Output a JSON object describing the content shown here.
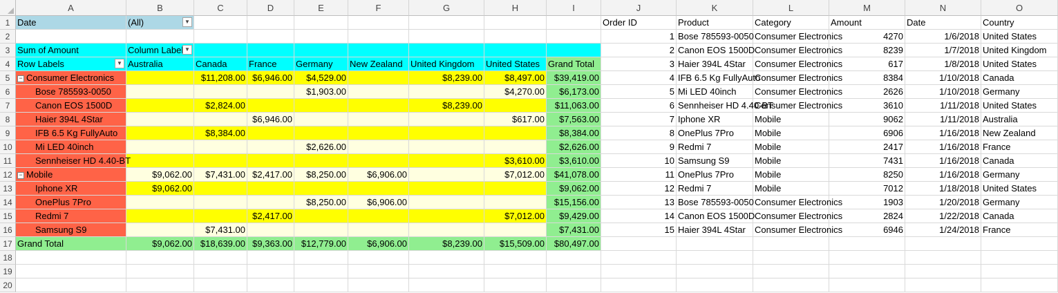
{
  "columns": [
    "A",
    "B",
    "C",
    "D",
    "E",
    "F",
    "G",
    "H",
    "I",
    "J",
    "K",
    "L",
    "M",
    "N",
    "O"
  ],
  "rows": [
    "1",
    "2",
    "3",
    "4",
    "5",
    "6",
    "7",
    "8",
    "9",
    "10",
    "11",
    "12",
    "13",
    "14",
    "15",
    "16",
    "17",
    "18",
    "19",
    "20"
  ],
  "colors": {
    "filter_bg": "#add8e6",
    "header_bg": "#00ffff",
    "row_label_bg": "#ff6347",
    "band_yellow": "#ffff00",
    "band_light": "#ffffe0",
    "total_green": "#90ee90"
  },
  "pivot": {
    "filter_label": "Date",
    "filter_value": "(All)",
    "values_label": "Sum of Amount",
    "column_labels": "Column Labels",
    "row_labels": "Row Labels",
    "grand_total_label": "Grand Total",
    "countries": [
      "Australia",
      "Canada",
      "France",
      "Germany",
      "New Zealand",
      "United Kingdom",
      "United States",
      "Grand Total"
    ],
    "rows": [
      {
        "label": "Consumer Electronics",
        "group": true,
        "values": [
          "",
          "$11,208.00",
          "$6,946.00",
          "$4,529.00",
          "",
          "$8,239.00",
          "$8,497.00",
          "$39,419.00"
        ]
      },
      {
        "label": "Bose 785593-0050",
        "group": false,
        "values": [
          "",
          "",
          "",
          "$1,903.00",
          "",
          "",
          "$4,270.00",
          "$6,173.00"
        ]
      },
      {
        "label": "Canon EOS 1500D",
        "group": false,
        "values": [
          "",
          "$2,824.00",
          "",
          "",
          "",
          "$8,239.00",
          "",
          "$11,063.00"
        ]
      },
      {
        "label": "Haier 394L 4Star",
        "group": false,
        "values": [
          "",
          "",
          "$6,946.00",
          "",
          "",
          "",
          "$617.00",
          "$7,563.00"
        ]
      },
      {
        "label": "IFB 6.5 Kg FullyAuto",
        "group": false,
        "values": [
          "",
          "$8,384.00",
          "",
          "",
          "",
          "",
          "",
          "$8,384.00"
        ]
      },
      {
        "label": "Mi LED 40inch",
        "group": false,
        "values": [
          "",
          "",
          "",
          "$2,626.00",
          "",
          "",
          "",
          "$2,626.00"
        ]
      },
      {
        "label": "Sennheiser HD 4.40-BT",
        "group": false,
        "values": [
          "",
          "",
          "",
          "",
          "",
          "",
          "$3,610.00",
          "$3,610.00"
        ]
      },
      {
        "label": "Mobile",
        "group": true,
        "values": [
          "$9,062.00",
          "$7,431.00",
          "$2,417.00",
          "$8,250.00",
          "$6,906.00",
          "",
          "$7,012.00",
          "$41,078.00"
        ]
      },
      {
        "label": "Iphone XR",
        "group": false,
        "values": [
          "$9,062.00",
          "",
          "",
          "",
          "",
          "",
          "",
          "$9,062.00"
        ]
      },
      {
        "label": "OnePlus 7Pro",
        "group": false,
        "values": [
          "",
          "",
          "",
          "$8,250.00",
          "$6,906.00",
          "",
          "",
          "$15,156.00"
        ]
      },
      {
        "label": "Redmi 7",
        "group": false,
        "values": [
          "",
          "",
          "$2,417.00",
          "",
          "",
          "",
          "$7,012.00",
          "$9,429.00"
        ]
      },
      {
        "label": "Samsung S9",
        "group": false,
        "values": [
          "",
          "$7,431.00",
          "",
          "",
          "",
          "",
          "",
          "$7,431.00"
        ]
      }
    ],
    "grand_total_values": [
      "$9,062.00",
      "$18,639.00",
      "$9,363.00",
      "$12,779.00",
      "$6,906.00",
      "$8,239.00",
      "$15,509.00",
      "$80,497.00"
    ]
  },
  "table": {
    "headers": [
      "Order ID",
      "Product",
      "Category",
      "Amount",
      "Date",
      "Country"
    ],
    "rows": [
      [
        "1",
        "Bose 785593-0050",
        "Consumer Electronics",
        "4270",
        "1/6/2018",
        "United States"
      ],
      [
        "2",
        "Canon EOS 1500D",
        "Consumer Electronics",
        "8239",
        "1/7/2018",
        "United Kingdom"
      ],
      [
        "3",
        "Haier 394L 4Star",
        "Consumer Electronics",
        "617",
        "1/8/2018",
        "United States"
      ],
      [
        "4",
        "IFB 6.5 Kg FullyAuto",
        "Consumer Electronics",
        "8384",
        "1/10/2018",
        "Canada"
      ],
      [
        "5",
        "Mi LED 40inch",
        "Consumer Electronics",
        "2626",
        "1/10/2018",
        "Germany"
      ],
      [
        "6",
        "Sennheiser HD 4.40-BT",
        "Consumer Electronics",
        "3610",
        "1/11/2018",
        "United States"
      ],
      [
        "7",
        "Iphone XR",
        "Mobile",
        "9062",
        "1/11/2018",
        "Australia"
      ],
      [
        "8",
        "OnePlus 7Pro",
        "Mobile",
        "6906",
        "1/16/2018",
        "New Zealand"
      ],
      [
        "9",
        "Redmi 7",
        "Mobile",
        "2417",
        "1/16/2018",
        "France"
      ],
      [
        "10",
        "Samsung S9",
        "Mobile",
        "7431",
        "1/16/2018",
        "Canada"
      ],
      [
        "11",
        "OnePlus 7Pro",
        "Mobile",
        "8250",
        "1/16/2018",
        "Germany"
      ],
      [
        "12",
        "Redmi 7",
        "Mobile",
        "7012",
        "1/18/2018",
        "United States"
      ],
      [
        "13",
        "Bose 785593-0050",
        "Consumer Electronics",
        "1903",
        "1/20/2018",
        "Germany"
      ],
      [
        "14",
        "Canon EOS 1500D",
        "Consumer Electronics",
        "2824",
        "1/22/2018",
        "Canada"
      ],
      [
        "15",
        "Haier 394L 4Star",
        "Consumer Electronics",
        "6946",
        "1/24/2018",
        "France"
      ]
    ]
  },
  "icons": {
    "filter_dropdown": "dropdown-arrow-icon",
    "collapse": "collapse-minus-icon"
  }
}
